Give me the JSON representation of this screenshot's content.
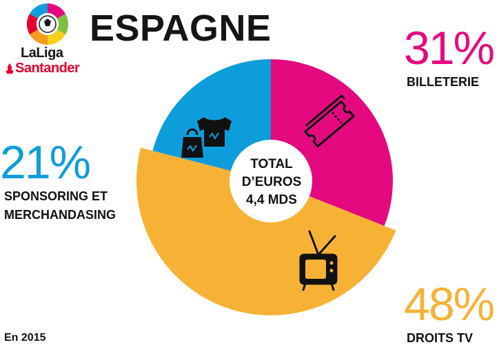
{
  "header": {
    "title": "ESPAGNE",
    "brand_line1": "LaLiga",
    "brand_line2": "Santander"
  },
  "center": {
    "line1": "TOTAL",
    "line2": "D’EUROS",
    "line3": "4,4 MDS"
  },
  "footnote": "En 2015",
  "colors": {
    "billetterie": "#e5097f",
    "droits_tv": "#f7b236",
    "sponsoring": "#0d9ddb"
  },
  "chart_data": {
    "type": "pie",
    "title": "ESPAGNE",
    "total_label": "TOTAL D’EUROS 4,4 MDS",
    "slices": [
      {
        "key": "billetterie",
        "label": "BILLETERIE",
        "percent_label": "31%",
        "value": 31,
        "icon": "ticket-icon"
      },
      {
        "key": "droits_tv",
        "label": "DROITS TV",
        "percent_label": "48%",
        "value": 48,
        "icon": "tv-icon"
      },
      {
        "key": "sponsoring",
        "label_line1": "SPONSORING ET",
        "label_line2": "MERCHANDASING",
        "percent_label": "21%",
        "value": 21,
        "icon": "shirt-bag-icon"
      }
    ]
  }
}
